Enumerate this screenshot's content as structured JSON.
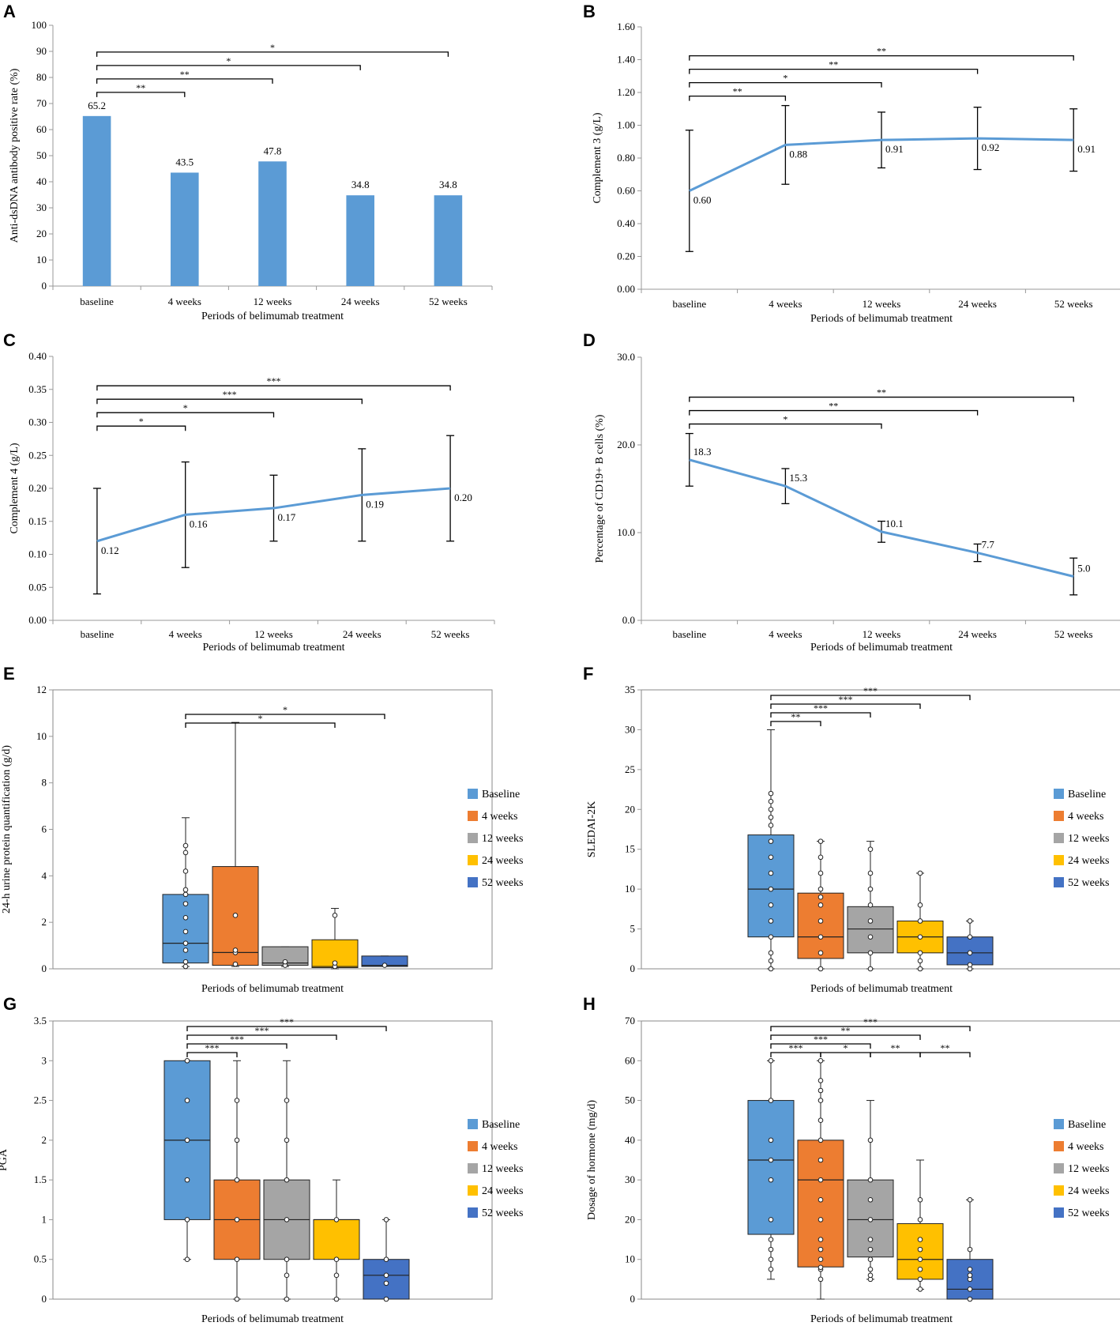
{
  "x_title": "Periods of belimumab treatment",
  "chart_data": [
    {
      "panel": "A",
      "type": "bar",
      "ylabel": "Anti-dsDNA antibody positive rate (%)",
      "xlabel": "Periods of belimumab treatment",
      "categories": [
        "baseline",
        "4 weeks",
        "12 weeks",
        "24 weeks",
        "52 weeks"
      ],
      "values": [
        65.2,
        43.5,
        47.8,
        34.8,
        34.8
      ],
      "value_labels": [
        "65.2",
        "43.5",
        "47.8",
        "34.8",
        "34.8"
      ],
      "ylim": [
        0,
        100
      ],
      "yticks": [
        "0",
        "10",
        "20",
        "30",
        "40",
        "50",
        "60",
        "70",
        "80",
        "90",
        "100"
      ],
      "color": "#5b9bd5",
      "significance": [
        {
          "from": 0,
          "to": 1,
          "label": "**"
        },
        {
          "from": 0,
          "to": 2,
          "label": "**"
        },
        {
          "from": 0,
          "to": 3,
          "label": "*"
        },
        {
          "from": 0,
          "to": 4,
          "label": "*"
        }
      ]
    },
    {
      "panel": "B",
      "type": "line",
      "ylabel": "Complement 3 (g/L)",
      "xlabel": "Periods of belimumab treatment",
      "categories": [
        "baseline",
        "4 weeks",
        "12 weeks",
        "24 weeks",
        "52 weeks"
      ],
      "values": [
        0.6,
        0.88,
        0.91,
        0.92,
        0.91
      ],
      "value_labels": [
        "0.60",
        "0.88",
        "0.91",
        "0.92",
        "0.91"
      ],
      "error_low": [
        0.23,
        0.64,
        0.74,
        0.73,
        0.72
      ],
      "error_high": [
        0.97,
        1.12,
        1.08,
        1.11,
        1.1
      ],
      "ylim": [
        0,
        1.6
      ],
      "yticks": [
        "0.00",
        "0.20",
        "0.40",
        "0.60",
        "0.80",
        "1.00",
        "1.20",
        "1.40",
        "1.60"
      ],
      "color": "#5b9bd5",
      "significance": [
        {
          "from": 0,
          "to": 1,
          "label": "**"
        },
        {
          "from": 0,
          "to": 2,
          "label": "*"
        },
        {
          "from": 0,
          "to": 3,
          "label": "**"
        },
        {
          "from": 0,
          "to": 4,
          "label": "**"
        }
      ]
    },
    {
      "panel": "C",
      "type": "line",
      "ylabel": "Complement 4 (g/L)",
      "xlabel": "Periods of belimumab treatment",
      "categories": [
        "baseline",
        "4 weeks",
        "12 weeks",
        "24 weeks",
        "52 weeks"
      ],
      "values": [
        0.12,
        0.16,
        0.17,
        0.19,
        0.2
      ],
      "value_labels": [
        "0.12",
        "0.16",
        "0.17",
        "0.19",
        "0.20"
      ],
      "error_low": [
        0.04,
        0.08,
        0.12,
        0.12,
        0.12
      ],
      "error_high": [
        0.2,
        0.24,
        0.22,
        0.26,
        0.28
      ],
      "ylim": [
        0,
        0.4
      ],
      "yticks": [
        "0.00",
        "0.05",
        "0.10",
        "0.15",
        "0.20",
        "0.25",
        "0.30",
        "0.35",
        "0.40"
      ],
      "color": "#5b9bd5",
      "significance": [
        {
          "from": 0,
          "to": 1,
          "label": "*"
        },
        {
          "from": 0,
          "to": 2,
          "label": "*"
        },
        {
          "from": 0,
          "to": 3,
          "label": "***"
        },
        {
          "from": 0,
          "to": 4,
          "label": "***"
        }
      ]
    },
    {
      "panel": "D",
      "type": "line",
      "ylabel": "Percentage of CD19+ B cells (%)",
      "xlabel": "Periods of belimumab treatment",
      "categories": [
        "baseline",
        "4 weeks",
        "12 weeks",
        "24 weeks",
        "52 weeks"
      ],
      "values": [
        18.3,
        15.3,
        10.1,
        7.7,
        5.0
      ],
      "value_labels": [
        "18.3",
        "15.3",
        "10.1",
        "7.7",
        "5.0"
      ],
      "error_low": [
        15.3,
        13.3,
        8.9,
        6.7,
        2.9
      ],
      "error_high": [
        21.3,
        17.3,
        11.3,
        8.7,
        7.1
      ],
      "ylim": [
        0,
        30
      ],
      "yticks": [
        "0.0",
        "10.0",
        "20.0",
        "30.0"
      ],
      "color": "#5b9bd5",
      "significance": [
        {
          "from": 0,
          "to": 2,
          "label": "*"
        },
        {
          "from": 0,
          "to": 3,
          "label": "**"
        },
        {
          "from": 0,
          "to": 4,
          "label": "**"
        }
      ]
    },
    {
      "panel": "E",
      "type": "box",
      "ylabel": "24-h urine protein quantification (g/d)",
      "xlabel": "Periods of belimumab treatment",
      "series_names": [
        "Baseline",
        "4 weeks",
        "12 weeks",
        "24 weeks",
        "52 weeks"
      ],
      "colors": [
        "#5b9bd5",
        "#ed7d31",
        "#a5a5a5",
        "#ffc000",
        "#4472c4"
      ],
      "ylim": [
        0,
        12
      ],
      "yticks": [
        "0",
        "2",
        "4",
        "6",
        "8",
        "10",
        "12"
      ],
      "boxes": [
        {
          "min": 0.1,
          "q1": 0.25,
          "median": 1.1,
          "q3": 3.2,
          "max": 6.5,
          "points": [
            0.1,
            0.3,
            0.8,
            1.1,
            1.6,
            2.2,
            2.8,
            3.2,
            3.4,
            4.2,
            5.0,
            5.3
          ]
        },
        {
          "min": 0.1,
          "q1": 0.15,
          "median": 0.7,
          "q3": 4.4,
          "max": 10.6,
          "points": [
            0.2,
            0.7,
            0.8,
            2.3
          ]
        },
        {
          "min": 0.1,
          "q1": 0.15,
          "median": 0.25,
          "q3": 0.95,
          "max": 0.95,
          "points": [
            0.15,
            0.3
          ]
        },
        {
          "min": 0.0,
          "q1": 0.05,
          "median": 0.1,
          "q3": 1.25,
          "max": 2.6,
          "points": [
            0.1,
            0.25,
            2.3
          ]
        },
        {
          "min": 0.1,
          "q1": 0.1,
          "median": 0.15,
          "q3": 0.55,
          "max": 0.55,
          "points": [
            0.15
          ]
        }
      ],
      "significance": [
        {
          "from": 0,
          "to": 3,
          "label": "*"
        },
        {
          "from": 0,
          "to": 4,
          "label": "*"
        }
      ]
    },
    {
      "panel": "F",
      "type": "box",
      "ylabel": "SLEDAI-2K",
      "xlabel": "Periods of belimumab treatment",
      "series_names": [
        "Baseline",
        "4 weeks",
        "12 weeks",
        "24 weeks",
        "52 weeks"
      ],
      "colors": [
        "#5b9bd5",
        "#ed7d31",
        "#a5a5a5",
        "#ffc000",
        "#4472c4"
      ],
      "ylim": [
        0,
        35
      ],
      "yticks": [
        "0",
        "5",
        "10",
        "15",
        "20",
        "25",
        "30",
        "35"
      ],
      "boxes": [
        {
          "min": 0,
          "q1": 4,
          "median": 10,
          "q3": 16.8,
          "max": 30,
          "points": [
            0,
            1,
            2,
            4,
            6,
            8,
            10,
            12,
            14,
            16,
            18,
            19,
            20,
            21,
            22
          ]
        },
        {
          "min": 0,
          "q1": 1.3,
          "median": 4,
          "q3": 9.5,
          "max": 16,
          "points": [
            0,
            2,
            4,
            6,
            8,
            9,
            10,
            12,
            14,
            16
          ]
        },
        {
          "min": 0,
          "q1": 2,
          "median": 5,
          "q3": 7.8,
          "max": 16,
          "points": [
            0,
            2,
            4,
            6,
            8,
            10,
            12,
            15
          ]
        },
        {
          "min": 0,
          "q1": 2,
          "median": 4,
          "q3": 6,
          "max": 12,
          "points": [
            0,
            1,
            2,
            4,
            6,
            8,
            12
          ]
        },
        {
          "min": 0,
          "q1": 0.5,
          "median": 2,
          "q3": 4,
          "max": 6,
          "points": [
            0,
            0.5,
            2,
            4,
            6
          ]
        }
      ],
      "significance": [
        {
          "from": 0,
          "to": 1,
          "label": "**"
        },
        {
          "from": 0,
          "to": 2,
          "label": "***"
        },
        {
          "from": 0,
          "to": 3,
          "label": "***"
        },
        {
          "from": 0,
          "to": 4,
          "label": "***"
        }
      ]
    },
    {
      "panel": "G",
      "type": "box",
      "ylabel": "PGA",
      "xlabel": "Periods of belimumab treatment",
      "series_names": [
        "Baseline",
        "4 weeks",
        "12 weeks",
        "24 weeks",
        "52 weeks"
      ],
      "colors": [
        "#5b9bd5",
        "#ed7d31",
        "#a5a5a5",
        "#ffc000",
        "#4472c4"
      ],
      "ylim": [
        0,
        3.5
      ],
      "yticks": [
        "0",
        "0.5",
        "1",
        "1.5",
        "2",
        "2.5",
        "3",
        "3.5"
      ],
      "boxes": [
        {
          "min": 0.5,
          "q1": 1,
          "median": 2,
          "q3": 3,
          "max": 3,
          "points": [
            0.5,
            1,
            1.5,
            2,
            2.5,
            3
          ]
        },
        {
          "min": 0,
          "q1": 0.5,
          "median": 1,
          "q3": 1.5,
          "max": 3,
          "points": [
            0,
            0.5,
            1,
            1.5,
            2,
            2.5
          ]
        },
        {
          "min": 0,
          "q1": 0.5,
          "median": 1,
          "q3": 1.5,
          "max": 3,
          "points": [
            0,
            0.3,
            0.5,
            1,
            1.5,
            2,
            2.5
          ]
        },
        {
          "min": 0,
          "q1": 0.5,
          "median": 1,
          "q3": 1,
          "max": 1.5,
          "points": [
            0,
            0.3,
            0.5,
            1
          ]
        },
        {
          "min": 0,
          "q1": 0,
          "median": 0.3,
          "q3": 0.5,
          "max": 1,
          "points": [
            0,
            0.2,
            0.3,
            0.5,
            1
          ]
        }
      ],
      "significance": [
        {
          "from": 0,
          "to": 1,
          "label": "***"
        },
        {
          "from": 0,
          "to": 2,
          "label": "***"
        },
        {
          "from": 0,
          "to": 3,
          "label": "***"
        },
        {
          "from": 0,
          "to": 4,
          "label": "***"
        }
      ]
    },
    {
      "panel": "H",
      "type": "box",
      "ylabel": "Dosage of hormone (mg/d)",
      "xlabel": "Periods of belimumab treatment",
      "series_names": [
        "Baseline",
        "4 weeks",
        "12 weeks",
        "24 weeks",
        "52 weeks"
      ],
      "colors": [
        "#5b9bd5",
        "#ed7d31",
        "#a5a5a5",
        "#ffc000",
        "#4472c4"
      ],
      "ylim": [
        0,
        70
      ],
      "yticks": [
        "0",
        "10",
        "20",
        "30",
        "40",
        "50",
        "60",
        "70"
      ],
      "boxes": [
        {
          "min": 5,
          "q1": 16.3,
          "median": 35,
          "q3": 50,
          "max": 60,
          "points": [
            7.5,
            10,
            12.5,
            15,
            20,
            30,
            35,
            40,
            50,
            60
          ]
        },
        {
          "min": 0,
          "q1": 8.1,
          "median": 30,
          "q3": 40,
          "max": 60,
          "points": [
            5,
            7.5,
            8,
            10,
            12.5,
            15,
            20,
            25,
            30,
            35,
            40,
            45,
            50,
            52.5,
            55,
            60
          ]
        },
        {
          "min": 5,
          "q1": 10.6,
          "median": 20,
          "q3": 30,
          "max": 50,
          "points": [
            5,
            6,
            7.5,
            10,
            12.5,
            15,
            20,
            25,
            30,
            40
          ]
        },
        {
          "min": 2.5,
          "q1": 5,
          "median": 10,
          "q3": 19,
          "max": 35,
          "points": [
            2.5,
            5,
            7.5,
            10,
            12.5,
            15,
            20,
            25
          ]
        },
        {
          "min": 0,
          "q1": 0,
          "median": 2.5,
          "q3": 10,
          "max": 25,
          "points": [
            0,
            2.5,
            5,
            6,
            7.5,
            12.5,
            25
          ]
        }
      ],
      "significance": [
        {
          "from": 0,
          "to": 1,
          "label": "***"
        },
        {
          "from": 1,
          "to": 2,
          "label": "*"
        },
        {
          "from": 2,
          "to": 3,
          "label": "**"
        },
        {
          "from": 3,
          "to": 4,
          "label": "**"
        },
        {
          "from": 0,
          "to": 2,
          "label": "***"
        },
        {
          "from": 0,
          "to": 3,
          "label": "**"
        },
        {
          "from": 0,
          "to": 4,
          "label": "***"
        }
      ]
    }
  ]
}
